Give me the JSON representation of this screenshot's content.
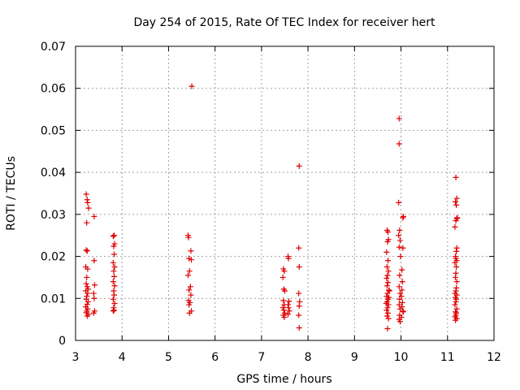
{
  "chart_data": {
    "type": "scatter",
    "title": "Day 254 of 2015, Rate Of TEC Index for receiver hert",
    "xlabel": "GPS time / hours",
    "ylabel": "ROTI / TECUs",
    "xlim": [
      3,
      12
    ],
    "ylim": [
      0,
      0.07
    ],
    "xticks": [
      3,
      4,
      5,
      6,
      7,
      8,
      9,
      10,
      11,
      12
    ],
    "yticks": [
      0,
      0.01,
      0.02,
      0.03,
      0.04,
      0.05,
      0.06,
      0.07
    ],
    "xtick_labels": [
      "3",
      "4",
      "5",
      "6",
      "7",
      "8",
      "9",
      "10",
      "11",
      "12"
    ],
    "ytick_labels": [
      "0",
      "0.01",
      "0.02",
      "0.03",
      "0.04",
      "0.05",
      "0.06",
      "0.07"
    ],
    "grid": true,
    "marker": "+",
    "color": "#e00000",
    "series": [
      {
        "name": "ROTI",
        "points": [
          [
            3.23,
            0.0348
          ],
          [
            3.25,
            0.0335
          ],
          [
            3.26,
            0.0328
          ],
          [
            3.28,
            0.0315
          ],
          [
            3.24,
            0.028
          ],
          [
            3.23,
            0.0215
          ],
          [
            3.25,
            0.0213
          ],
          [
            3.22,
            0.0175
          ],
          [
            3.26,
            0.017
          ],
          [
            3.24,
            0.015
          ],
          [
            3.23,
            0.0135
          ],
          [
            3.25,
            0.0128
          ],
          [
            3.27,
            0.0122
          ],
          [
            3.22,
            0.0118
          ],
          [
            3.26,
            0.0112
          ],
          [
            3.24,
            0.0105
          ],
          [
            3.23,
            0.0098
          ],
          [
            3.27,
            0.0092
          ],
          [
            3.25,
            0.0086
          ],
          [
            3.22,
            0.008
          ],
          [
            3.26,
            0.0075
          ],
          [
            3.24,
            0.007
          ],
          [
            3.23,
            0.0066
          ],
          [
            3.28,
            0.0062
          ],
          [
            3.25,
            0.0058
          ],
          [
            3.4,
            0.0295
          ],
          [
            3.4,
            0.019
          ],
          [
            3.41,
            0.0132
          ],
          [
            3.39,
            0.0112
          ],
          [
            3.4,
            0.01
          ],
          [
            3.41,
            0.007
          ],
          [
            3.39,
            0.0065
          ],
          [
            3.83,
            0.025
          ],
          [
            3.81,
            0.0248
          ],
          [
            3.84,
            0.023
          ],
          [
            3.82,
            0.0224
          ],
          [
            3.83,
            0.0205
          ],
          [
            3.81,
            0.0185
          ],
          [
            3.84,
            0.0175
          ],
          [
            3.82,
            0.0165
          ],
          [
            3.83,
            0.0152
          ],
          [
            3.81,
            0.014
          ],
          [
            3.84,
            0.013
          ],
          [
            3.82,
            0.0118
          ],
          [
            3.83,
            0.0108
          ],
          [
            3.81,
            0.0098
          ],
          [
            3.84,
            0.0088
          ],
          [
            3.82,
            0.0078
          ],
          [
            3.83,
            0.0072
          ],
          [
            3.81,
            0.007
          ],
          [
            5.42,
            0.025
          ],
          [
            5.43,
            0.0245
          ],
          [
            5.48,
            0.0213
          ],
          [
            5.44,
            0.0195
          ],
          [
            5.49,
            0.0192
          ],
          [
            5.45,
            0.0165
          ],
          [
            5.42,
            0.0155
          ],
          [
            5.47,
            0.0128
          ],
          [
            5.44,
            0.012
          ],
          [
            5.48,
            0.0108
          ],
          [
            5.43,
            0.0095
          ],
          [
            5.46,
            0.009
          ],
          [
            5.44,
            0.0085
          ],
          [
            5.49,
            0.007
          ],
          [
            5.45,
            0.0065
          ],
          [
            5.5,
            0.0605
          ],
          [
            7.47,
            0.017
          ],
          [
            7.49,
            0.0165
          ],
          [
            7.46,
            0.015
          ],
          [
            7.48,
            0.0122
          ],
          [
            7.5,
            0.0118
          ],
          [
            7.47,
            0.0095
          ],
          [
            7.49,
            0.0085
          ],
          [
            7.46,
            0.0078
          ],
          [
            7.48,
            0.0072
          ],
          [
            7.5,
            0.0065
          ],
          [
            7.47,
            0.006
          ],
          [
            7.49,
            0.0055
          ],
          [
            7.57,
            0.02
          ],
          [
            7.58,
            0.0195
          ],
          [
            7.59,
            0.0093
          ],
          [
            7.57,
            0.0085
          ],
          [
            7.58,
            0.0078
          ],
          [
            7.6,
            0.007
          ],
          [
            7.57,
            0.0062
          ],
          [
            7.81,
            0.0415
          ],
          [
            7.8,
            0.022
          ],
          [
            7.81,
            0.0175
          ],
          [
            7.8,
            0.0112
          ],
          [
            7.82,
            0.0092
          ],
          [
            7.81,
            0.0082
          ],
          [
            7.8,
            0.006
          ],
          [
            7.81,
            0.003
          ],
          [
            9.7,
            0.0262
          ],
          [
            9.72,
            0.0258
          ],
          [
            9.73,
            0.024
          ],
          [
            9.71,
            0.0235
          ],
          [
            9.69,
            0.021
          ],
          [
            9.72,
            0.019
          ],
          [
            9.7,
            0.0175
          ],
          [
            9.73,
            0.0165
          ],
          [
            9.71,
            0.0155
          ],
          [
            9.69,
            0.0148
          ],
          [
            9.72,
            0.0138
          ],
          [
            9.7,
            0.013
          ],
          [
            9.74,
            0.012
          ],
          [
            9.71,
            0.0112
          ],
          [
            9.69,
            0.0105
          ],
          [
            9.72,
            0.0098
          ],
          [
            9.7,
            0.0092
          ],
          [
            9.73,
            0.0085
          ],
          [
            9.71,
            0.0078
          ],
          [
            9.69,
            0.0072
          ],
          [
            9.72,
            0.0065
          ],
          [
            9.7,
            0.0058
          ],
          [
            9.73,
            0.0052
          ],
          [
            9.71,
            0.0028
          ],
          [
            9.74,
            0.0102
          ],
          [
            9.75,
            0.0118
          ],
          [
            9.68,
            0.0088
          ],
          [
            9.96,
            0.0528
          ],
          [
            9.96,
            0.0468
          ],
          [
            9.95,
            0.0328
          ],
          [
            9.97,
            0.0262
          ],
          [
            9.95,
            0.025
          ],
          [
            9.98,
            0.0238
          ],
          [
            9.96,
            0.0222
          ],
          [
            10.05,
            0.0295
          ],
          [
            10.04,
            0.0292
          ],
          [
            10.04,
            0.022
          ],
          [
            9.99,
            0.02
          ],
          [
            10.02,
            0.0168
          ],
          [
            9.97,
            0.0155
          ],
          [
            10.03,
            0.014
          ],
          [
            9.96,
            0.0128
          ],
          [
            10.02,
            0.012
          ],
          [
            9.98,
            0.0112
          ],
          [
            10.01,
            0.0105
          ],
          [
            9.97,
            0.0098
          ],
          [
            10.03,
            0.009
          ],
          [
            9.96,
            0.0085
          ],
          [
            10.02,
            0.008
          ],
          [
            9.98,
            0.0075
          ],
          [
            10.04,
            0.007
          ],
          [
            10.05,
            0.0068
          ],
          [
            9.97,
            0.006
          ],
          [
            10.01,
            0.0055
          ],
          [
            9.96,
            0.005
          ],
          [
            9.98,
            0.0045
          ],
          [
            11.18,
            0.0388
          ],
          [
            11.17,
            0.033
          ],
          [
            11.2,
            0.0338
          ],
          [
            11.19,
            0.0322
          ],
          [
            11.2,
            0.029
          ],
          [
            11.21,
            0.0292
          ],
          [
            11.18,
            0.0285
          ],
          [
            11.16,
            0.027
          ],
          [
            11.2,
            0.022
          ],
          [
            11.19,
            0.0212
          ],
          [
            11.17,
            0.02
          ],
          [
            11.18,
            0.0195
          ],
          [
            11.2,
            0.019
          ],
          [
            11.16,
            0.0185
          ],
          [
            11.19,
            0.0175
          ],
          [
            11.18,
            0.016
          ],
          [
            11.17,
            0.015
          ],
          [
            11.2,
            0.014
          ],
          [
            11.19,
            0.0125
          ],
          [
            11.18,
            0.0118
          ],
          [
            11.16,
            0.0112
          ],
          [
            11.2,
            0.0108
          ],
          [
            11.17,
            0.0102
          ],
          [
            11.19,
            0.0098
          ],
          [
            11.18,
            0.0092
          ],
          [
            11.16,
            0.0085
          ],
          [
            11.2,
            0.0075
          ],
          [
            11.17,
            0.0068
          ],
          [
            11.19,
            0.0065
          ],
          [
            11.18,
            0.006
          ],
          [
            11.16,
            0.0056
          ],
          [
            11.2,
            0.0052
          ],
          [
            11.17,
            0.0048
          ]
        ]
      }
    ]
  }
}
